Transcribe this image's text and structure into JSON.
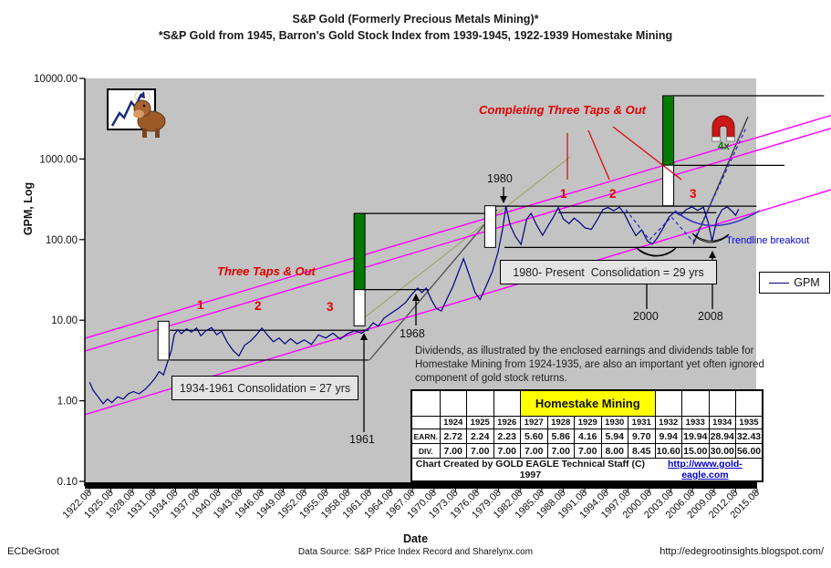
{
  "title": "S&P Gold (Formerly Precious Metals Mining)*",
  "subtitle": "*S&P Gold from 1945, Barron's Gold Stock Index from 1939-1945, 1922-1939 Homestake Mining",
  "chart_data": {
    "type": "line",
    "x_axis": {
      "label": "Date",
      "tick_labels": [
        "1922.08",
        "1925.08",
        "1928.08",
        "1931.08",
        "1934.08",
        "1937.08",
        "1940.08",
        "1943.08",
        "1946.08",
        "1949.08",
        "1952.08",
        "1955.08",
        "1958.08",
        "1961.08",
        "1964.08",
        "1967.08",
        "1970.08",
        "1973.08",
        "1976.08",
        "1979.08",
        "1982.08",
        "1985.08",
        "1988.08",
        "1991.08",
        "1994.08",
        "1997.08",
        "2000.08",
        "2003.08",
        "2006.08",
        "2009.08",
        "2012.08",
        "2015.08"
      ]
    },
    "y_axis": {
      "label": "GPM, Log",
      "scale": "log",
      "range": [
        0.1,
        10000
      ],
      "tick_labels": [
        "10000.00",
        "1000.00",
        "100.00",
        "10.00",
        "1.00",
        "0.10"
      ]
    },
    "series": [
      {
        "name": "GPM",
        "color": "#000080",
        "points": [
          [
            1922.1,
            1.7
          ],
          [
            1922.6,
            1.35
          ],
          [
            1923.2,
            1.15
          ],
          [
            1924.0,
            0.92
          ],
          [
            1924.6,
            1.05
          ],
          [
            1925.2,
            0.95
          ],
          [
            1926.0,
            1.12
          ],
          [
            1926.8,
            1.05
          ],
          [
            1927.5,
            1.22
          ],
          [
            1928.2,
            1.3
          ],
          [
            1929.0,
            1.22
          ],
          [
            1929.8,
            1.38
          ],
          [
            1930.5,
            1.6
          ],
          [
            1931.2,
            1.9
          ],
          [
            1931.8,
            2.3
          ],
          [
            1932.4,
            2.1
          ],
          [
            1933.0,
            3.1
          ],
          [
            1933.5,
            4.2
          ],
          [
            1933.9,
            6.6
          ],
          [
            1934.4,
            7.6
          ],
          [
            1934.9,
            6.8
          ],
          [
            1935.6,
            7.8
          ],
          [
            1936.3,
            7.1
          ],
          [
            1937.0,
            8.0
          ],
          [
            1937.6,
            6.4
          ],
          [
            1938.3,
            7.4
          ],
          [
            1939.1,
            8.1
          ],
          [
            1939.8,
            6.6
          ],
          [
            1940.5,
            7.3
          ],
          [
            1941.3,
            5.3
          ],
          [
            1942.1,
            4.2
          ],
          [
            1942.9,
            3.6
          ],
          [
            1943.7,
            4.9
          ],
          [
            1944.5,
            5.5
          ],
          [
            1945.3,
            6.5
          ],
          [
            1946.1,
            8.0
          ],
          [
            1946.9,
            6.5
          ],
          [
            1947.7,
            5.4
          ],
          [
            1948.5,
            6.0
          ],
          [
            1949.3,
            5.1
          ],
          [
            1950.1,
            5.9
          ],
          [
            1951.0,
            5.1
          ],
          [
            1952.0,
            5.7
          ],
          [
            1953.0,
            5.0
          ],
          [
            1954.0,
            6.6
          ],
          [
            1955.0,
            6.0
          ],
          [
            1956.0,
            6.9
          ],
          [
            1957.0,
            5.8
          ],
          [
            1958.0,
            6.8
          ],
          [
            1959.0,
            7.4
          ],
          [
            1960.0,
            6.9
          ],
          [
            1961.0,
            8.0
          ],
          [
            1961.6,
            9.3
          ],
          [
            1962.3,
            8.4
          ],
          [
            1963.1,
            10.6
          ],
          [
            1964.1,
            12.2
          ],
          [
            1965.1,
            14.0
          ],
          [
            1966.1,
            16.5
          ],
          [
            1967.0,
            21.0
          ],
          [
            1967.8,
            25.0
          ],
          [
            1968.4,
            22.0
          ],
          [
            1969.0,
            25.0
          ],
          [
            1969.7,
            18.0
          ],
          [
            1970.4,
            14.0
          ],
          [
            1971.1,
            13.0
          ],
          [
            1971.9,
            18.5
          ],
          [
            1972.7,
            26.0
          ],
          [
            1973.5,
            40.0
          ],
          [
            1974.2,
            58.0
          ],
          [
            1975.0,
            36.0
          ],
          [
            1975.8,
            22.0
          ],
          [
            1976.5,
            18.0
          ],
          [
            1977.3,
            26.0
          ],
          [
            1978.2,
            40.0
          ],
          [
            1979.0,
            70.0
          ],
          [
            1979.6,
            130.0
          ],
          [
            1980.1,
            258.0
          ],
          [
            1980.7,
            150.0
          ],
          [
            1981.4,
            110.0
          ],
          [
            1982.2,
            87.0
          ],
          [
            1983.0,
            180.0
          ],
          [
            1983.6,
            212.0
          ],
          [
            1984.4,
            150.0
          ],
          [
            1985.2,
            113.0
          ],
          [
            1986.0,
            150.0
          ],
          [
            1986.7,
            190.0
          ],
          [
            1987.4,
            250.0
          ],
          [
            1988.1,
            180.0
          ],
          [
            1988.9,
            158.0
          ],
          [
            1989.6,
            185.0
          ],
          [
            1990.3,
            165.0
          ],
          [
            1991.1,
            140.0
          ],
          [
            1992.0,
            134.0
          ],
          [
            1992.8,
            175.0
          ],
          [
            1993.6,
            235.0
          ],
          [
            1994.3,
            250.0
          ],
          [
            1995.1,
            228.0
          ],
          [
            1995.9,
            252.0
          ],
          [
            1996.6,
            210.0
          ],
          [
            1997.4,
            150.0
          ],
          [
            1998.2,
            112.0
          ],
          [
            1999.0,
            132.0
          ],
          [
            1999.8,
            96.0
          ],
          [
            2000.5,
            88.0
          ],
          [
            2001.2,
            106.0
          ],
          [
            2002.0,
            140.0
          ],
          [
            2002.8,
            190.0
          ],
          [
            2003.6,
            220.0
          ],
          [
            2004.4,
            200.0
          ],
          [
            2005.2,
            235.0
          ],
          [
            2006.0,
            255.0
          ],
          [
            2006.8,
            230.0
          ],
          [
            2007.6,
            252.0
          ],
          [
            2008.3,
            160.0
          ],
          [
            2008.8,
            96.0
          ],
          [
            2009.5,
            180.0
          ],
          [
            2010.2,
            235.0
          ],
          [
            2010.9,
            255.0
          ],
          [
            2011.6,
            225.0
          ],
          [
            2012.1,
            200.0
          ],
          [
            2012.5,
            238.0
          ]
        ]
      }
    ],
    "channel_lines": {
      "color": "#ff00ff",
      "lines": [
        {
          "year1": 1922.08,
          "value1": 6.2,
          "year2": 2015.08,
          "value2": 1850
        },
        {
          "year1": 1922.08,
          "value1": 4.3,
          "year2": 2015.08,
          "value2": 1280
        },
        {
          "year1": 1922.08,
          "value1": 0.7,
          "year2": 2015.08,
          "value2": 220
        }
      ]
    },
    "level_lines": [
      {
        "value": 7.5,
        "from": 1933.3,
        "to": 1961.0
      },
      {
        "value": 3.2,
        "from": 1933.3,
        "to": 1961.0
      },
      {
        "value": 24,
        "from": 1959.0,
        "to": 1969.3
      },
      {
        "value": 211,
        "from": 1959.0,
        "to": 1978.6
      },
      {
        "value": 260,
        "from": 1978.6,
        "to": 2015.0
      },
      {
        "value": 216,
        "from": 1987.4,
        "to": 2009.4
      },
      {
        "value": 80,
        "from": 1979.9,
        "to": 2009.4
      },
      {
        "value": 6100,
        "from": 2003.3,
        "to": 2024.4
      },
      {
        "value": 834,
        "from": 2003.4,
        "to": 2018.9
      }
    ],
    "measured_move_bars": [
      {
        "center_year": 1932.4,
        "white": [
          3.2,
          9.7
        ],
        "green": null
      },
      {
        "center_year": 1959.7,
        "white": [
          8.5,
          24
        ],
        "green": [
          24,
          211
        ]
      },
      {
        "center_year": 1977.9,
        "white": [
          80,
          263
        ],
        "green": null
      },
      {
        "center_year": 2002.7,
        "white": [
          263,
          840
        ],
        "green": [
          840,
          6100
        ]
      }
    ],
    "legend": {
      "label": "GPM"
    }
  },
  "annotations": {
    "completing_taps": "Completing Three Taps & Out",
    "three_taps": "Three Taps & Out",
    "tap_numbers": [
      "1",
      "2",
      "3"
    ],
    "year_1980": "1980",
    "year_1961": "1961",
    "year_1968": "1968",
    "year_2000": "2000",
    "year_2008": "2008",
    "consolidation_1": "1934-1961 Consolidation = 27 yrs",
    "consolidation_2": "1980- Present  Consolidation = 29 yrs",
    "trendline_breakout": "Trendline breakout",
    "magnet_multiplier": "4x"
  },
  "homestake_table": {
    "title": "Homestake Mining",
    "years": [
      "1924",
      "1925",
      "1926",
      "1927",
      "1928",
      "1929",
      "1930",
      "1931",
      "1932",
      "1933",
      "1934",
      "1935"
    ],
    "rows": [
      {
        "label": "EARN.",
        "values": [
          "2.72",
          "2.24",
          "2.23",
          "5.60",
          "5.86",
          "4.16",
          "5.94",
          "9.70",
          "9.94",
          "19.94",
          "28.94",
          "32.43"
        ]
      },
      {
        "label": "DIV.",
        "values": [
          "7.00",
          "7.00",
          "7.00",
          "7.00",
          "7.00",
          "7.00",
          "8.00",
          "8.45",
          "10.60",
          "15.00",
          "30.00",
          "56.00"
        ]
      }
    ],
    "footer_left": "Chart Created by GOLD EAGLE Technical Staff (C) 1997",
    "footer_right": "http://www.gold-eagle.com"
  },
  "dividends_note": "Dividends, as illustrated by the enclosed earnings and dividends table for Homestake Mining from 1924-1935, are also an important yet often ignored component of gold stock returns.",
  "footer": {
    "author": "ECDeGroot",
    "source": "Data Source: S&P Price Index Record and Sharelynx.com",
    "url": "http://edegrootinsights.blogspot.com/"
  }
}
